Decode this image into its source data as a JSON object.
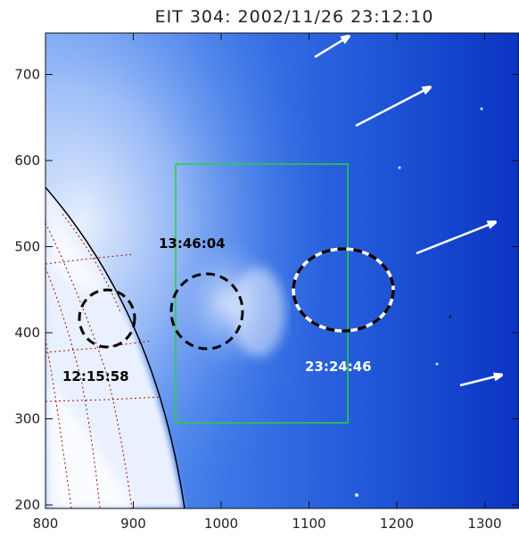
{
  "title": "EIT 304: 2002/11/26 23:12:10",
  "x_ticks": [
    "800",
    "900",
    "1000",
    "1100",
    "1200",
    "1300"
  ],
  "y_ticks": [
    "200",
    "300",
    "400",
    "500",
    "600",
    "700"
  ],
  "annotations": {
    "time_1": "12:15:58",
    "time_2": "13:46:04",
    "time_3": "23:24:46"
  },
  "colors": {
    "disk_white": "#f2f6ff",
    "corona_blue": "#3f7ae8",
    "deep_blue": "#0a36c9",
    "box_green": "#22d43a",
    "grid_red": "#a01010"
  }
}
